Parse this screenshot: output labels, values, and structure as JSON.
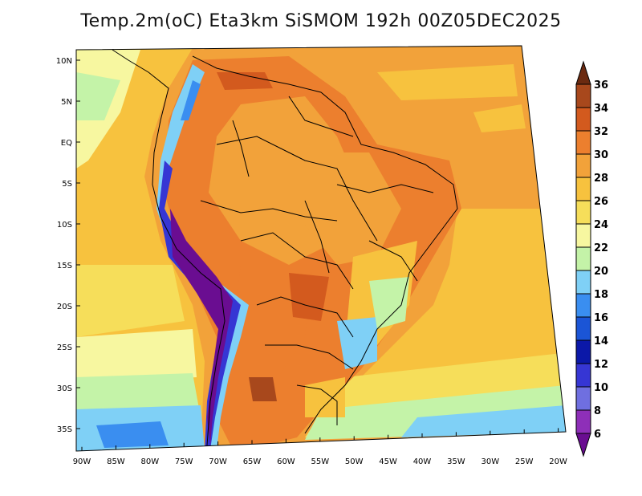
{
  "title": "Temp.2m(oC) Eta3km SiSMOM 192h 00Z05DEC2025",
  "map": {
    "lat_labels": [
      "10N",
      "5N",
      "EQ",
      "5S",
      "10S",
      "15S",
      "20S",
      "25S",
      "30S",
      "35S"
    ],
    "lon_labels": [
      "90W",
      "85W",
      "80W",
      "75W",
      "70W",
      "65W",
      "60W",
      "55W",
      "50W",
      "45W",
      "40W",
      "35W",
      "30W",
      "25W",
      "20W"
    ]
  },
  "colorbar": {
    "labels": [
      "6",
      "8",
      "10",
      "12",
      "14",
      "16",
      "18",
      "20",
      "22",
      "24",
      "26",
      "28",
      "30",
      "32",
      "34",
      "36"
    ],
    "colors": [
      "#6a0d91",
      "#8e2fb8",
      "#6f6fe0",
      "#3636d4",
      "#0b18a8",
      "#1b55d6",
      "#3a8ef0",
      "#7fd0f6",
      "#c4f3a8",
      "#f7f7a0",
      "#f6de5a",
      "#f7c23e",
      "#f2a23a",
      "#ec7f2e",
      "#d35a1e",
      "#a8481c",
      "#6b2a10"
    ],
    "under_color": "#6a0d91",
    "over_color": "#6b2a10"
  }
}
